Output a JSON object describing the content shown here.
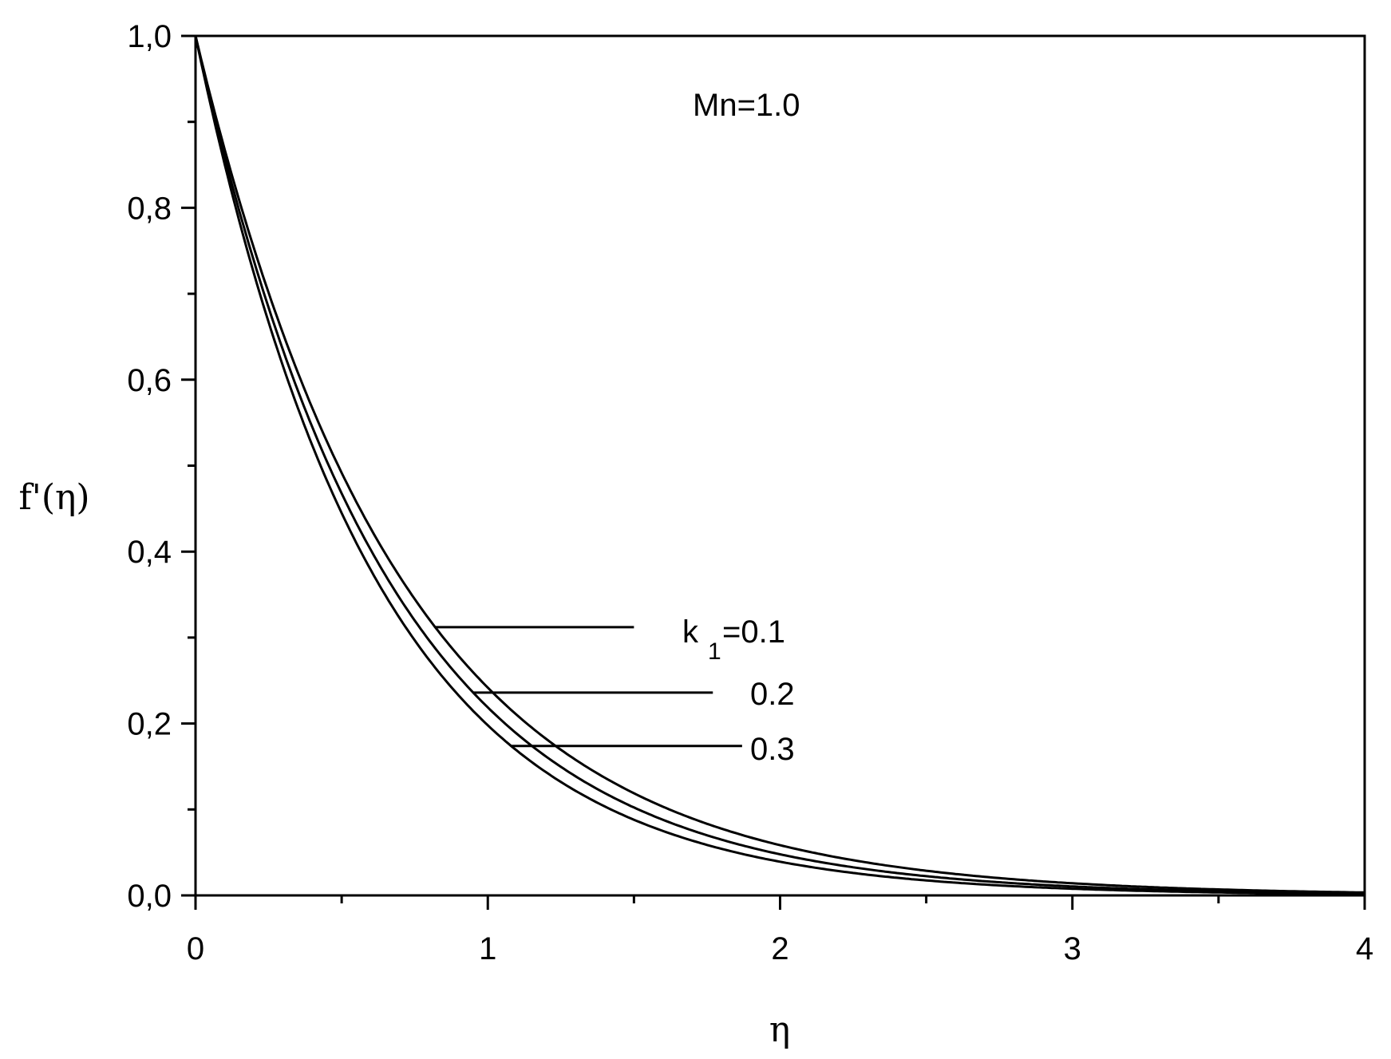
{
  "chart_data": {
    "type": "line",
    "title": "",
    "xlabel": "η",
    "ylabel": "f'(η)",
    "xlim": [
      0,
      4
    ],
    "ylim": [
      0,
      1.0
    ],
    "x_ticks": [
      "0",
      "1",
      "2",
      "3",
      "4"
    ],
    "y_ticks": [
      "0,0",
      "0,2",
      "0,4",
      "0,6",
      "0,8",
      "1,0"
    ],
    "grid": false,
    "annotation": "Mn=1.0",
    "param_symbol": "k",
    "param_subscript": "1",
    "series": [
      {
        "name": "0.1",
        "decay": 1.42,
        "label": "=0.1"
      },
      {
        "name": "0.2",
        "decay": 1.52,
        "label": "0.2"
      },
      {
        "name": "0.3",
        "decay": 1.62,
        "label": "0.3"
      }
    ],
    "sample_points": {
      "x": [
        0,
        0.5,
        1.0,
        1.5,
        2.0,
        2.5,
        3.0,
        3.5,
        4.0
      ],
      "k1_0.1": [
        1.0,
        0.49,
        0.24,
        0.12,
        0.058,
        0.029,
        0.014,
        0.007,
        0.003
      ],
      "k1_0.2": [
        1.0,
        0.47,
        0.22,
        0.1,
        0.048,
        0.022,
        0.01,
        0.005,
        0.002
      ],
      "k1_0.3": [
        1.0,
        0.44,
        0.2,
        0.088,
        0.039,
        0.017,
        0.008,
        0.003,
        0.0015
      ]
    },
    "leaders": [
      {
        "series": "0.1",
        "x_data": 0.82,
        "label_x_data": 1.5
      },
      {
        "series": "0.2",
        "x_data": 0.95,
        "label_x_data": 1.77
      },
      {
        "series": "0.3",
        "x_data": 1.08,
        "label_x_data": 1.87
      }
    ]
  }
}
